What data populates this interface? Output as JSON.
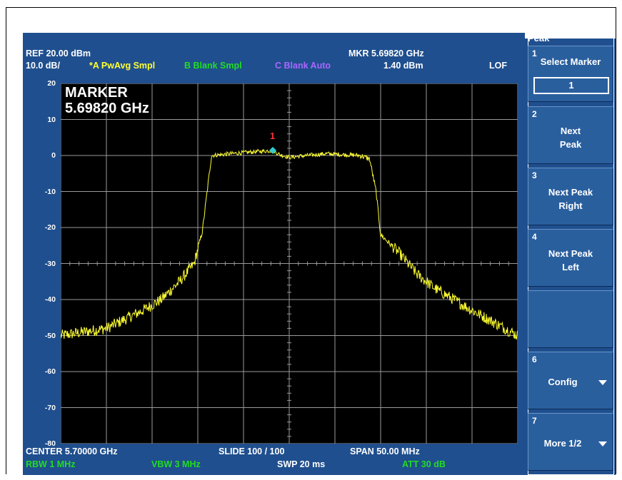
{
  "header": {
    "ref_level": "REF  20.00 dBm",
    "scale": "10.0 dB/",
    "trace_a": "*A PwAvg Smpl",
    "trace_b": "B Blank Smpl",
    "trace_c": "C Blank Auto",
    "marker_freq": "MKR 5.69820 GHz",
    "marker_level": "1.40 dBm",
    "lof": "LOF"
  },
  "marker_readout": {
    "title": "MARKER",
    "freq": "5.69820 GHz",
    "label": "1"
  },
  "footer": {
    "center": "CENTER 5.70000 GHz",
    "slide": "SLIDE 100 / 100",
    "span": "SPAN 50.00 MHz",
    "rbw": "RBW  1 MHz",
    "vbw": "VBW  3 MHz",
    "swp": "SWP  20 ms",
    "att": "ATT  30 dB"
  },
  "menu": {
    "title": "Peak",
    "keys": [
      {
        "num": "1",
        "label": "Select Marker",
        "value": "1"
      },
      {
        "num": "2",
        "label": "Next\nPeak"
      },
      {
        "num": "3",
        "label": "Next Peak\nRight"
      },
      {
        "num": "4",
        "label": "Next Peak\nLeft"
      },
      {
        "num": "",
        "label": ""
      },
      {
        "num": "6",
        "label": "Config"
      },
      {
        "num": "7",
        "label": "More 1/2"
      }
    ]
  },
  "colors": {
    "screen_bg": "#1f4f8e",
    "plot_bg": "#000000",
    "trace": "#ffff33",
    "trace_a_label": "#ffff33",
    "trace_b_label": "#22dd22",
    "trace_c_label": "#aa66ff",
    "marker": "#33cccc",
    "marker_label": "#ff3333",
    "footer_green": "#22dd22"
  },
  "chart_data": {
    "type": "line",
    "title": "",
    "xlabel": "",
    "ylabel": "",
    "y_ticks": [
      20,
      10,
      0,
      -10,
      -20,
      -30,
      -40,
      -50,
      -60,
      -70,
      -80
    ],
    "xlim": [
      5.675,
      5.725
    ],
    "ylim": [
      -80,
      20
    ],
    "grid": true,
    "series": [
      {
        "x": [
          5.675,
          5.68,
          5.684,
          5.686,
          5.688,
          5.6896,
          5.69,
          5.6905,
          5.6915,
          5.695,
          5.6982,
          5.699,
          5.7,
          5.704,
          5.7078,
          5.7088,
          5.7095,
          5.71,
          5.712,
          5.714,
          5.716,
          5.72,
          5.725
        ],
        "y": [
          -50,
          -48,
          -43,
          -40,
          -35,
          -30,
          -26,
          -21,
          0,
          0.8,
          1.4,
          0.2,
          -0.5,
          0.5,
          0,
          -1,
          -10,
          -22,
          -27,
          -33,
          -37,
          -43,
          -50
        ]
      }
    ],
    "marker": {
      "label": "1",
      "x": 5.6982,
      "y": 1.4
    }
  }
}
